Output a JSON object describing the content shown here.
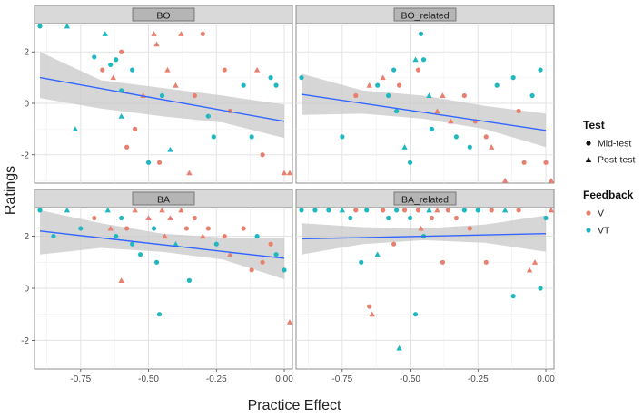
{
  "chart_data": {
    "type": "scatter",
    "xlabel": "Practice Effect",
    "ylabel": "Ratings",
    "xlim": [
      -0.92,
      0.03
    ],
    "ylim": [
      -3.1,
      3.1
    ],
    "x_ticks": [
      -0.75,
      -0.5,
      -0.25,
      0.0
    ],
    "x_tick_labels": [
      "-0.75",
      "-0.50",
      "-0.25",
      "0.00"
    ],
    "y_ticks": [
      -2,
      0,
      2
    ],
    "y_tick_labels": [
      "-2",
      "0",
      "2"
    ],
    "legends": [
      {
        "title": "Test",
        "entries": [
          "Mid-test",
          "Post-test"
        ]
      },
      {
        "title": "Feedback",
        "entries": [
          "V",
          "VT"
        ]
      }
    ],
    "colors": {
      "V": "#e8806f",
      "VT": "#1fb8c0",
      "fit": "#3366ff",
      "ci": "#c8c8c8",
      "panel_bg": "#ffffff",
      "strip_bg": "#d9d9d9"
    },
    "panels": [
      {
        "title": "BO",
        "fit": {
          "x0": -0.9,
          "y0": 1.0,
          "x1": 0.0,
          "y1": -0.7
        },
        "band": {
          "lo": [
            0.2,
            -0.2,
            -0.5,
            -0.75,
            -1.35
          ],
          "hi": [
            2.0,
            0.9,
            0.6,
            0.3,
            -0.05
          ]
        },
        "points": [
          [
            -0.9,
            3.0,
            "VT",
            "circle"
          ],
          [
            -0.8,
            3.0,
            "VT",
            "triangle"
          ],
          [
            -0.77,
            -1.0,
            "VT",
            "triangle"
          ],
          [
            -0.7,
            1.8,
            "VT",
            "circle"
          ],
          [
            -0.67,
            1.3,
            "V",
            "circle"
          ],
          [
            -0.66,
            2.7,
            "VT",
            "triangle"
          ],
          [
            -0.64,
            1.5,
            "VT",
            "circle"
          ],
          [
            -0.63,
            1.0,
            "V",
            "triangle"
          ],
          [
            -0.62,
            1.7,
            "VT",
            "circle"
          ],
          [
            -0.6,
            2.0,
            "V",
            "circle"
          ],
          [
            -0.6,
            0.5,
            "VT",
            "circle"
          ],
          [
            -0.6,
            -0.5,
            "VT",
            "triangle"
          ],
          [
            -0.58,
            -1.7,
            "V",
            "circle"
          ],
          [
            -0.56,
            1.3,
            "VT",
            "circle"
          ],
          [
            -0.55,
            -1.0,
            "V",
            "circle"
          ],
          [
            -0.52,
            0.3,
            "V",
            "triangle"
          ],
          [
            -0.5,
            -2.3,
            "VT",
            "circle"
          ],
          [
            -0.48,
            2.7,
            "V",
            "triangle"
          ],
          [
            -0.47,
            2.3,
            "V",
            "triangle"
          ],
          [
            -0.46,
            -2.3,
            "V",
            "circle"
          ],
          [
            -0.45,
            0.3,
            "VT",
            "circle"
          ],
          [
            -0.43,
            1.3,
            "V",
            "triangle"
          ],
          [
            -0.42,
            -1.8,
            "VT",
            "triangle"
          ],
          [
            -0.4,
            0.7,
            "V",
            "triangle"
          ],
          [
            -0.38,
            2.7,
            "V",
            "triangle"
          ],
          [
            -0.35,
            -2.7,
            "V",
            "triangle"
          ],
          [
            -0.33,
            0.3,
            "V",
            "circle"
          ],
          [
            -0.3,
            2.7,
            "V",
            "circle"
          ],
          [
            -0.28,
            -0.5,
            "VT",
            "circle"
          ],
          [
            -0.26,
            -1.3,
            "VT",
            "circle"
          ],
          [
            -0.22,
            1.3,
            "V",
            "circle"
          ],
          [
            -0.2,
            -0.3,
            "V",
            "circle"
          ],
          [
            -0.15,
            0.7,
            "VT",
            "circle"
          ],
          [
            -0.12,
            -1.3,
            "VT",
            "circle"
          ],
          [
            -0.1,
            1.3,
            "V",
            "triangle"
          ],
          [
            -0.08,
            -2.0,
            "V",
            "circle"
          ],
          [
            -0.05,
            1.0,
            "VT",
            "circle"
          ],
          [
            -0.03,
            0.7,
            "VT",
            "circle"
          ],
          [
            0.0,
            -2.7,
            "V",
            "triangle"
          ],
          [
            0.02,
            -2.7,
            "V",
            "triangle"
          ]
        ]
      },
      {
        "title": "BO_related",
        "fit": {
          "x0": -0.9,
          "y0": 0.35,
          "x1": 0.0,
          "y1": -1.05
        },
        "band": {
          "lo": [
            -0.45,
            -0.4,
            -0.6,
            -1.0,
            -1.7
          ],
          "hi": [
            1.15,
            0.5,
            0.3,
            -0.1,
            -0.4
          ]
        },
        "points": [
          [
            -0.9,
            1.0,
            "VT",
            "circle"
          ],
          [
            -0.75,
            -1.3,
            "VT",
            "circle"
          ],
          [
            -0.7,
            0.3,
            "V",
            "circle"
          ],
          [
            -0.65,
            0.7,
            "V",
            "triangle"
          ],
          [
            -0.62,
            0.7,
            "VT",
            "circle"
          ],
          [
            -0.6,
            1.0,
            "V",
            "triangle"
          ],
          [
            -0.58,
            0.3,
            "VT",
            "circle"
          ],
          [
            -0.56,
            1.3,
            "VT",
            "circle"
          ],
          [
            -0.55,
            -0.3,
            "VT",
            "circle"
          ],
          [
            -0.54,
            0.7,
            "V",
            "circle"
          ],
          [
            -0.52,
            -1.7,
            "VT",
            "triangle"
          ],
          [
            -0.5,
            -2.3,
            "VT",
            "circle"
          ],
          [
            -0.48,
            1.7,
            "VT",
            "triangle"
          ],
          [
            -0.47,
            1.3,
            "V",
            "circle"
          ],
          [
            -0.46,
            2.7,
            "VT",
            "circle"
          ],
          [
            -0.45,
            1.7,
            "VT",
            "circle"
          ],
          [
            -0.43,
            0.3,
            "VT",
            "triangle"
          ],
          [
            -0.42,
            -1.0,
            "VT",
            "circle"
          ],
          [
            -0.4,
            -0.3,
            "V",
            "triangle"
          ],
          [
            -0.38,
            0.3,
            "V",
            "triangle"
          ],
          [
            -0.35,
            -0.7,
            "V",
            "triangle"
          ],
          [
            -0.33,
            -1.3,
            "VT",
            "circle"
          ],
          [
            -0.3,
            0.3,
            "V",
            "circle"
          ],
          [
            -0.28,
            -1.7,
            "VT",
            "circle"
          ],
          [
            -0.26,
            -0.7,
            "V",
            "circle"
          ],
          [
            -0.22,
            -1.3,
            "V",
            "circle"
          ],
          [
            -0.2,
            -1.7,
            "V",
            "triangle"
          ],
          [
            -0.18,
            0.7,
            "VT",
            "circle"
          ],
          [
            -0.15,
            -3.0,
            "V",
            "triangle"
          ],
          [
            -0.12,
            1.0,
            "VT",
            "circle"
          ],
          [
            -0.1,
            -0.3,
            "V",
            "circle"
          ],
          [
            -0.08,
            -2.3,
            "V",
            "circle"
          ],
          [
            -0.05,
            0.3,
            "VT",
            "circle"
          ],
          [
            -0.02,
            1.3,
            "VT",
            "circle"
          ],
          [
            0.0,
            -2.3,
            "V",
            "circle"
          ],
          [
            0.02,
            -3.0,
            "V",
            "triangle"
          ]
        ]
      },
      {
        "title": "BA",
        "fit": {
          "x0": -0.9,
          "y0": 2.2,
          "x1": 0.0,
          "y1": 1.15
        },
        "band": {
          "lo": [
            1.3,
            1.55,
            1.4,
            1.1,
            0.35
          ],
          "hi": [
            3.0,
            2.5,
            2.1,
            1.95,
            1.95
          ]
        },
        "points": [
          [
            -0.9,
            3.0,
            "VT",
            "circle"
          ],
          [
            -0.85,
            2.0,
            "VT",
            "circle"
          ],
          [
            -0.8,
            3.0,
            "VT",
            "triangle"
          ],
          [
            -0.75,
            2.3,
            "VT",
            "circle"
          ],
          [
            -0.7,
            2.7,
            "V",
            "circle"
          ],
          [
            -0.65,
            3.0,
            "VT",
            "triangle"
          ],
          [
            -0.64,
            2.3,
            "V",
            "triangle"
          ],
          [
            -0.62,
            2.0,
            "VT",
            "circle"
          ],
          [
            -0.6,
            2.7,
            "VT",
            "circle"
          ],
          [
            -0.6,
            0.3,
            "V",
            "triangle"
          ],
          [
            -0.58,
            2.3,
            "V",
            "circle"
          ],
          [
            -0.56,
            1.7,
            "VT",
            "circle"
          ],
          [
            -0.55,
            3.0,
            "V",
            "triangle"
          ],
          [
            -0.53,
            1.3,
            "VT",
            "circle"
          ],
          [
            -0.5,
            2.7,
            "V",
            "triangle"
          ],
          [
            -0.48,
            2.3,
            "VT",
            "circle"
          ],
          [
            -0.47,
            1.0,
            "VT",
            "circle"
          ],
          [
            -0.46,
            -1.0,
            "VT",
            "circle"
          ],
          [
            -0.45,
            3.0,
            "V",
            "triangle"
          ],
          [
            -0.44,
            2.0,
            "V",
            "triangle"
          ],
          [
            -0.42,
            2.7,
            "V",
            "triangle"
          ],
          [
            -0.4,
            1.7,
            "VT",
            "triangle"
          ],
          [
            -0.38,
            3.0,
            "V",
            "triangle"
          ],
          [
            -0.36,
            2.3,
            "V",
            "circle"
          ],
          [
            -0.35,
            0.3,
            "VT",
            "circle"
          ],
          [
            -0.33,
            2.7,
            "V",
            "circle"
          ],
          [
            -0.3,
            2.0,
            "V",
            "triangle"
          ],
          [
            -0.28,
            2.3,
            "V",
            "circle"
          ],
          [
            -0.25,
            1.7,
            "VT",
            "circle"
          ],
          [
            -0.22,
            2.0,
            "V",
            "circle"
          ],
          [
            -0.2,
            1.3,
            "V",
            "triangle"
          ],
          [
            -0.15,
            2.3,
            "V",
            "circle"
          ],
          [
            -0.12,
            0.7,
            "V",
            "circle"
          ],
          [
            -0.1,
            2.0,
            "VT",
            "circle"
          ],
          [
            -0.08,
            1.0,
            "V",
            "circle"
          ],
          [
            -0.05,
            1.7,
            "V",
            "circle"
          ],
          [
            -0.03,
            1.3,
            "VT",
            "circle"
          ],
          [
            0.0,
            0.7,
            "VT",
            "circle"
          ],
          [
            0.02,
            -1.3,
            "V",
            "triangle"
          ]
        ]
      },
      {
        "title": "BA_related",
        "fit": {
          "x0": -0.9,
          "y0": 1.9,
          "x1": 0.0,
          "y1": 2.1
        },
        "band": {
          "lo": [
            1.3,
            1.7,
            1.85,
            1.75,
            1.4
          ],
          "hi": [
            2.5,
            2.35,
            2.3,
            2.45,
            2.8
          ]
        },
        "points": [
          [
            -0.9,
            3.0,
            "VT",
            "circle"
          ],
          [
            -0.85,
            3.0,
            "VT",
            "circle"
          ],
          [
            -0.8,
            3.0,
            "VT",
            "circle"
          ],
          [
            -0.75,
            3.0,
            "VT",
            "triangle"
          ],
          [
            -0.72,
            2.7,
            "VT",
            "circle"
          ],
          [
            -0.7,
            3.0,
            "V",
            "circle"
          ],
          [
            -0.68,
            1.0,
            "VT",
            "circle"
          ],
          [
            -0.66,
            3.0,
            "VT",
            "circle"
          ],
          [
            -0.65,
            -0.7,
            "V",
            "circle"
          ],
          [
            -0.64,
            -1.0,
            "V",
            "triangle"
          ],
          [
            -0.62,
            1.3,
            "VT",
            "triangle"
          ],
          [
            -0.6,
            3.0,
            "V",
            "circle"
          ],
          [
            -0.58,
            2.7,
            "VT",
            "circle"
          ],
          [
            -0.56,
            1.7,
            "V",
            "circle"
          ],
          [
            -0.55,
            3.0,
            "VT",
            "circle"
          ],
          [
            -0.54,
            -2.3,
            "VT",
            "triangle"
          ],
          [
            -0.52,
            3.0,
            "V",
            "circle"
          ],
          [
            -0.5,
            2.7,
            "VT",
            "circle"
          ],
          [
            -0.48,
            -1.0,
            "VT",
            "circle"
          ],
          [
            -0.47,
            3.0,
            "V",
            "circle"
          ],
          [
            -0.46,
            2.3,
            "V",
            "triangle"
          ],
          [
            -0.45,
            2.0,
            "VT",
            "circle"
          ],
          [
            -0.43,
            3.0,
            "VT",
            "triangle"
          ],
          [
            -0.42,
            2.7,
            "V",
            "circle"
          ],
          [
            -0.4,
            3.0,
            "V",
            "triangle"
          ],
          [
            -0.38,
            1.0,
            "V",
            "circle"
          ],
          [
            -0.36,
            3.0,
            "V",
            "circle"
          ],
          [
            -0.33,
            2.7,
            "V",
            "circle"
          ],
          [
            -0.3,
            3.0,
            "VT",
            "circle"
          ],
          [
            -0.28,
            2.3,
            "V",
            "circle"
          ],
          [
            -0.25,
            3.0,
            "VT",
            "circle"
          ],
          [
            -0.22,
            1.0,
            "V",
            "circle"
          ],
          [
            -0.2,
            3.0,
            "V",
            "circle"
          ],
          [
            -0.15,
            3.0,
            "VT",
            "triangle"
          ],
          [
            -0.12,
            -0.3,
            "VT",
            "circle"
          ],
          [
            -0.1,
            3.0,
            "V",
            "circle"
          ],
          [
            -0.06,
            0.7,
            "V",
            "triangle"
          ],
          [
            -0.04,
            1.0,
            "V",
            "triangle"
          ],
          [
            -0.02,
            0.0,
            "VT",
            "circle"
          ],
          [
            0.0,
            2.7,
            "VT",
            "circle"
          ],
          [
            0.02,
            3.0,
            "V",
            "triangle"
          ]
        ]
      }
    ]
  }
}
